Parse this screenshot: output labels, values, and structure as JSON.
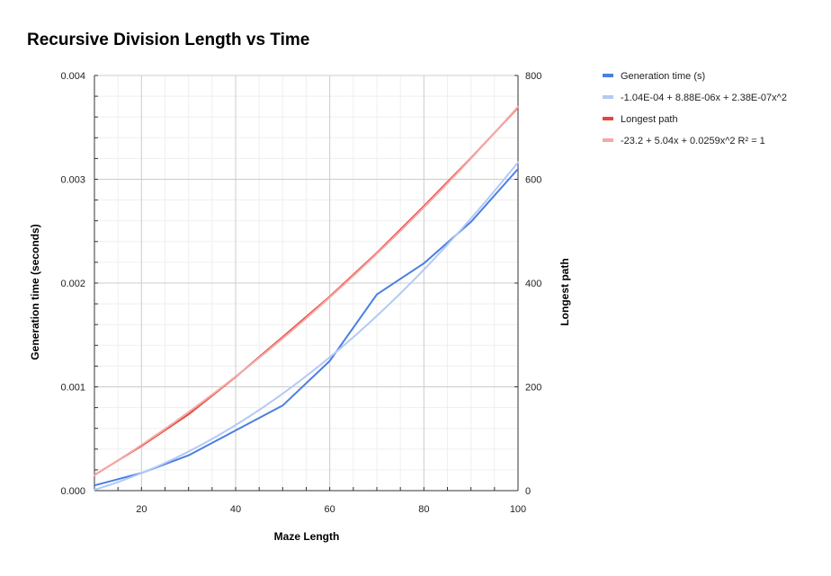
{
  "chart_data": {
    "type": "line",
    "title": "Recursive Division Length vs Time",
    "xlabel": "Maze Length",
    "ylabel_left": "Generation time (seconds)",
    "ylabel_right": "Longest path",
    "xlim": [
      10,
      100
    ],
    "ylim_left": [
      0,
      0.004
    ],
    "ylim_right": [
      0,
      800
    ],
    "x_ticks": [
      20,
      40,
      60,
      80,
      100
    ],
    "y_left_ticks": [
      "0.000",
      "0.001",
      "0.002",
      "0.003",
      "0.004"
    ],
    "y_left_tick_values": [
      0,
      0.001,
      0.002,
      0.003,
      0.004
    ],
    "y_right_ticks": [
      0,
      200,
      400,
      600,
      800
    ],
    "grid": true,
    "legend_position": "right",
    "series": [
      {
        "name": "Generation time (s)",
        "axis": "left",
        "color": "#4a7fe0",
        "style": "data",
        "x": [
          10,
          20,
          30,
          40,
          50,
          60,
          70,
          80,
          90,
          100
        ],
        "y": [
          5e-05,
          0.00017,
          0.00034,
          0.00058,
          0.00082,
          0.00125,
          0.00189,
          0.00219,
          0.00259,
          0.0031
        ]
      },
      {
        "name": "-1.04E-04 + 8.88E-06x + 2.38E-07x^2",
        "axis": "left",
        "color": "#b3c9f5",
        "style": "trendline",
        "fn": {
          "c0": -0.000104,
          "c1": 8.88e-06,
          "c2": 2.38e-07
        }
      },
      {
        "name": "Longest path",
        "axis": "right",
        "color": "#e8453c",
        "style": "data",
        "x": [
          10,
          20,
          30,
          40,
          50,
          60,
          70,
          80,
          90,
          100
        ],
        "y": [
          30,
          86,
          147,
          219,
          296,
          374,
          458,
          548,
          641,
          738
        ]
      },
      {
        "name": "-23.2 + 5.04x + 0.0259x^2 R² = 1",
        "axis": "right",
        "color": "#f4a9a5",
        "style": "trendline",
        "fn": {
          "c0": -23.2,
          "c1": 5.04,
          "c2": 0.0259
        }
      }
    ]
  }
}
